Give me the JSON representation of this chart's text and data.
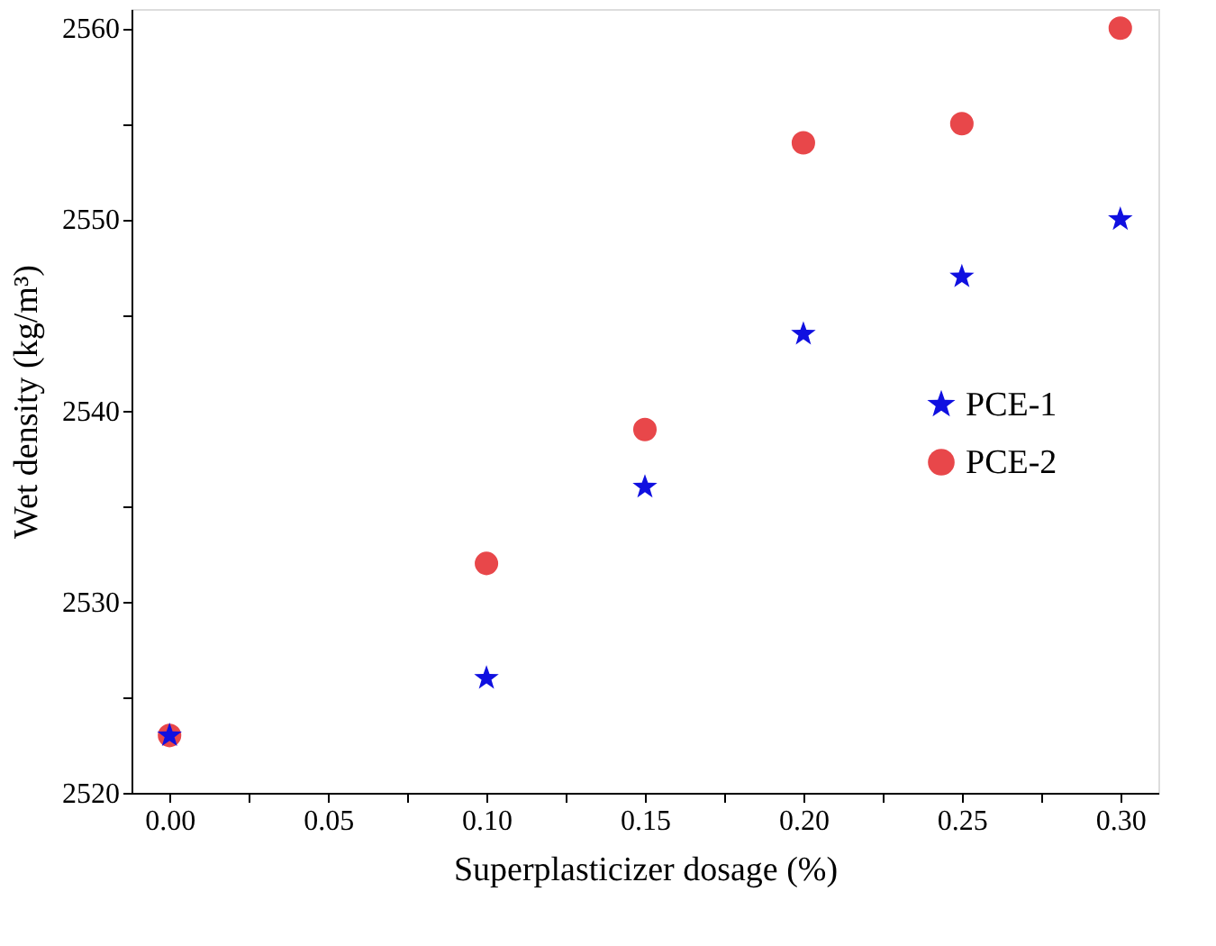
{
  "chart_data": {
    "type": "scatter",
    "xlabel": "Superplasticizer dosage (%)",
    "ylabel": "Wet density (kg/m³)",
    "x": [
      0.0,
      0.1,
      0.15,
      0.2,
      0.25,
      0.3
    ],
    "series": [
      {
        "name": "PCE-1",
        "color": "#1010e0",
        "marker": "star",
        "values": [
          2523,
          2526,
          2536,
          2544,
          2547,
          2550
        ]
      },
      {
        "name": "PCE-2",
        "color": "#e8474a",
        "marker": "circle",
        "values": [
          2523,
          2532,
          2539,
          2554,
          2555,
          2560
        ]
      }
    ],
    "xlim": [
      -0.012,
      0.312
    ],
    "xticks": [
      {
        "value": 0.0,
        "label": "0.00"
      },
      {
        "value": 0.025,
        "label": null
      },
      {
        "value": 0.05,
        "label": "0.05"
      },
      {
        "value": 0.075,
        "label": null
      },
      {
        "value": 0.1,
        "label": "0.10"
      },
      {
        "value": 0.125,
        "label": null
      },
      {
        "value": 0.15,
        "label": "0.15"
      },
      {
        "value": 0.175,
        "label": null
      },
      {
        "value": 0.2,
        "label": "0.20"
      },
      {
        "value": 0.225,
        "label": null
      },
      {
        "value": 0.25,
        "label": "0.25"
      },
      {
        "value": 0.275,
        "label": null
      },
      {
        "value": 0.3,
        "label": "0.30"
      }
    ],
    "ylim": [
      2520,
      2561
    ],
    "yticks": [
      2520,
      {
        "value": 2525,
        "label": null
      },
      2530,
      {
        "value": 2535,
        "label": null
      },
      2540,
      {
        "value": 2545,
        "label": null
      },
      2550,
      {
        "value": 2555,
        "label": null
      },
      2560
    ],
    "grid": false,
    "legend": "right"
  }
}
